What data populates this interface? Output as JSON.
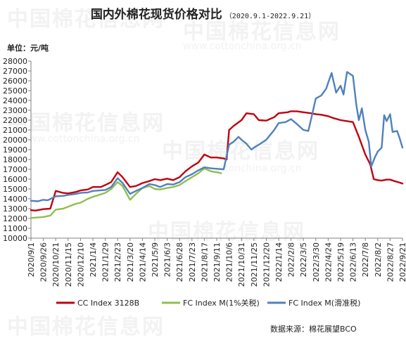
{
  "title": "国内外棉花现货价格对比",
  "subtitle": "（2020.9.1-2022.9.21）",
  "unit_label": "单位：元/吨",
  "source_note": "数据来源：棉花展望BCO",
  "watermark": {
    "text": "中国棉花信息网",
    "sub": "www.cottonchina.org.cn"
  },
  "colors": {
    "cc": "#c0000f",
    "fc1": "#8fbf4f",
    "fcs": "#4f81bd",
    "axis": "#808080",
    "tick_text": "#222222"
  },
  "chart_data": {
    "type": "line",
    "title": "国内外棉花现货价格对比",
    "subtitle": "（2020.9.1-2022.9.21）",
    "ylabel": "单位：元/吨",
    "xlabel": "",
    "ylim": [
      10000,
      28000
    ],
    "yticks": [
      10000,
      11000,
      12000,
      13000,
      14000,
      15000,
      16000,
      17000,
      18000,
      19000,
      20000,
      21000,
      22000,
      23000,
      24000,
      25000,
      26000,
      27000,
      28000
    ],
    "x_tick_labels": [
      "2020/9/1",
      "2020/9/26",
      "2020/10/21",
      "2020/11/15",
      "2020/12/10",
      "2021/1/4",
      "2021/1/29",
      "2021/2/23",
      "2021/3/20",
      "2021/4/14",
      "2021/5/9",
      "2021/6/3",
      "2021/6/28",
      "2021/7/23",
      "2021/8/17",
      "2021/9/11",
      "2021/10/6",
      "2021/10/31",
      "2021/11/25",
      "2021/12/20",
      "2022/1/14",
      "2022/2/8",
      "2022/3/5",
      "2022/3/30",
      "2022/4/24",
      "2022/5/19",
      "2022/6/13",
      "2022/7/8",
      "2022/8/2",
      "2022/8/27",
      "2022/9/21"
    ],
    "grid": false,
    "legend_position": "bottom",
    "series": [
      {
        "name": "CC Index 3128B",
        "color": "#c0000f",
        "points": [
          [
            "2020/9/1",
            12850
          ],
          [
            "2020/9/10",
            12800
          ],
          [
            "2020/9/26",
            12950
          ],
          [
            "2020/10/10",
            13000
          ],
          [
            "2020/10/21",
            14800
          ],
          [
            "2020/11/5",
            14600
          ],
          [
            "2020/11/15",
            14550
          ],
          [
            "2020/12/1",
            14700
          ],
          [
            "2020/12/10",
            14850
          ],
          [
            "2020/12/25",
            14950
          ],
          [
            "2021/1/4",
            15200
          ],
          [
            "2021/1/20",
            15200
          ],
          [
            "2021/1/29",
            15400
          ],
          [
            "2021/2/10",
            15700
          ],
          [
            "2021/2/23",
            16700
          ],
          [
            "2021/3/5",
            16200
          ],
          [
            "2021/3/20",
            15200
          ],
          [
            "2021/4/1",
            15300
          ],
          [
            "2021/4/14",
            15600
          ],
          [
            "2021/4/28",
            15800
          ],
          [
            "2021/5/9",
            16000
          ],
          [
            "2021/5/20",
            15900
          ],
          [
            "2021/6/3",
            16050
          ],
          [
            "2021/6/15",
            15900
          ],
          [
            "2021/6/28",
            16200
          ],
          [
            "2021/7/10",
            16800
          ],
          [
            "2021/7/23",
            17300
          ],
          [
            "2021/8/5",
            17700
          ],
          [
            "2021/8/17",
            18500
          ],
          [
            "2021/8/30",
            18200
          ],
          [
            "2021/9/11",
            18200
          ],
          [
            "2021/9/25",
            18100
          ],
          [
            "2021/10/1",
            18000
          ],
          [
            "2021/10/6",
            21000
          ],
          [
            "2021/10/15",
            21400
          ],
          [
            "2021/10/31",
            22000
          ],
          [
            "2021/11/10",
            22700
          ],
          [
            "2021/11/25",
            22600
          ],
          [
            "2021/12/5",
            22000
          ],
          [
            "2021/12/20",
            21950
          ],
          [
            "2022/1/5",
            22300
          ],
          [
            "2022/1/14",
            22700
          ],
          [
            "2022/2/1",
            22800
          ],
          [
            "2022/2/8",
            22900
          ],
          [
            "2022/2/20",
            22900
          ],
          [
            "2022/3/5",
            22800
          ],
          [
            "2022/3/20",
            22700
          ],
          [
            "2022/3/30",
            22600
          ],
          [
            "2022/4/10",
            22550
          ],
          [
            "2022/4/24",
            22400
          ],
          [
            "2022/5/5",
            22200
          ],
          [
            "2022/5/19",
            22000
          ],
          [
            "2022/6/1",
            21900
          ],
          [
            "2022/6/13",
            21800
          ],
          [
            "2022/6/25",
            20300
          ],
          [
            "2022/7/8",
            18500
          ],
          [
            "2022/7/18",
            17500
          ],
          [
            "2022/7/25",
            16000
          ],
          [
            "2022/8/2",
            15900
          ],
          [
            "2022/8/10",
            15850
          ],
          [
            "2022/8/20",
            15950
          ],
          [
            "2022/8/27",
            15950
          ],
          [
            "2022/9/5",
            15800
          ],
          [
            "2022/9/15",
            15650
          ],
          [
            "2022/9/21",
            15550
          ]
        ]
      },
      {
        "name": "FC Index M(1%关税)",
        "color": "#8fbf4f",
        "points": [
          [
            "2020/9/1",
            12050
          ],
          [
            "2020/9/26",
            12150
          ],
          [
            "2020/10/10",
            12300
          ],
          [
            "2020/10/21",
            12900
          ],
          [
            "2020/11/5",
            13000
          ],
          [
            "2020/11/15",
            13200
          ],
          [
            "2020/12/1",
            13500
          ],
          [
            "2020/12/10",
            13600
          ],
          [
            "2020/12/25",
            14000
          ],
          [
            "2021/1/4",
            14200
          ],
          [
            "2021/1/29",
            14600
          ],
          [
            "2021/2/10",
            15000
          ],
          [
            "2021/2/23",
            15700
          ],
          [
            "2021/3/5",
            15300
          ],
          [
            "2021/3/20",
            13900
          ],
          [
            "2021/4/1",
            14500
          ],
          [
            "2021/4/14",
            15100
          ],
          [
            "2021/4/28",
            15300
          ],
          [
            "2021/5/9",
            15000
          ],
          [
            "2021/5/20",
            14950
          ],
          [
            "2021/6/3",
            15100
          ],
          [
            "2021/6/15",
            15200
          ],
          [
            "2021/6/28",
            15400
          ],
          [
            "2021/7/10",
            15800
          ],
          [
            "2021/7/23",
            16200
          ],
          [
            "2021/8/5",
            16600
          ],
          [
            "2021/8/17",
            17100
          ],
          [
            "2021/8/30",
            16800
          ],
          [
            "2021/9/11",
            16700
          ],
          [
            "2021/9/20",
            16600
          ]
        ]
      },
      {
        "name": "FC Index M(滑准税)",
        "color": "#4f81bd",
        "points": [
          [
            "2020/9/1",
            13800
          ],
          [
            "2020/9/15",
            13750
          ],
          [
            "2020/9/26",
            13900
          ],
          [
            "2020/10/5",
            13850
          ],
          [
            "2020/10/21",
            14250
          ],
          [
            "2020/11/5",
            14300
          ],
          [
            "2020/11/15",
            14400
          ],
          [
            "2020/12/1",
            14500
          ],
          [
            "2020/12/10",
            14600
          ],
          [
            "2020/12/25",
            14650
          ],
          [
            "2021/1/4",
            14800
          ],
          [
            "2021/1/29",
            14900
          ],
          [
            "2021/2/10",
            15200
          ],
          [
            "2021/2/23",
            16100
          ],
          [
            "2021/3/5",
            15600
          ],
          [
            "2021/3/20",
            14500
          ],
          [
            "2021/4/1",
            14800
          ],
          [
            "2021/4/14",
            15100
          ],
          [
            "2021/4/28",
            15500
          ],
          [
            "2021/5/9",
            15400
          ],
          [
            "2021/5/20",
            15200
          ],
          [
            "2021/6/3",
            15500
          ],
          [
            "2021/6/15",
            15450
          ],
          [
            "2021/6/28",
            15700
          ],
          [
            "2021/7/10",
            16200
          ],
          [
            "2021/7/23",
            16500
          ],
          [
            "2021/8/5",
            16900
          ],
          [
            "2021/8/17",
            17200
          ],
          [
            "2021/8/30",
            17100
          ],
          [
            "2021/9/11",
            17050
          ],
          [
            "2021/9/25",
            17000
          ],
          [
            "2021/10/6",
            19500
          ],
          [
            "2021/10/15",
            19800
          ],
          [
            "2021/10/25",
            20300
          ],
          [
            "2021/10/31",
            20000
          ],
          [
            "2021/11/10",
            19600
          ],
          [
            "2021/11/20",
            19000
          ],
          [
            "2021/11/25",
            19200
          ],
          [
            "2021/12/5",
            19500
          ],
          [
            "2021/12/20",
            20000
          ],
          [
            "2022/1/5",
            21000
          ],
          [
            "2022/1/14",
            21700
          ],
          [
            "2022/1/28",
            21800
          ],
          [
            "2022/2/8",
            22100
          ],
          [
            "2022/2/20",
            21600
          ],
          [
            "2022/3/5",
            21000
          ],
          [
            "2022/3/15",
            20900
          ],
          [
            "2022/3/20",
            22000
          ],
          [
            "2022/3/30",
            24200
          ],
          [
            "2022/4/10",
            24500
          ],
          [
            "2022/4/20",
            25200
          ],
          [
            "2022/4/24",
            25800
          ],
          [
            "2022/5/1",
            26800
          ],
          [
            "2022/5/10",
            24800
          ],
          [
            "2022/5/19",
            25500
          ],
          [
            "2022/5/25",
            24600
          ],
          [
            "2022/6/1",
            26900
          ],
          [
            "2022/6/13",
            26500
          ],
          [
            "2022/6/20",
            23500
          ],
          [
            "2022/6/25",
            22000
          ],
          [
            "2022/7/1",
            23200
          ],
          [
            "2022/7/8",
            21000
          ],
          [
            "2022/7/15",
            19800
          ],
          [
            "2022/7/20",
            17300
          ],
          [
            "2022/7/28",
            18300
          ],
          [
            "2022/8/2",
            18800
          ],
          [
            "2022/8/10",
            19200
          ],
          [
            "2022/8/15",
            22500
          ],
          [
            "2022/8/20",
            21900
          ],
          [
            "2022/8/27",
            22600
          ],
          [
            "2022/9/1",
            20800
          ],
          [
            "2022/9/10",
            20900
          ],
          [
            "2022/9/15",
            20200
          ],
          [
            "2022/9/21",
            19200
          ]
        ]
      }
    ]
  }
}
